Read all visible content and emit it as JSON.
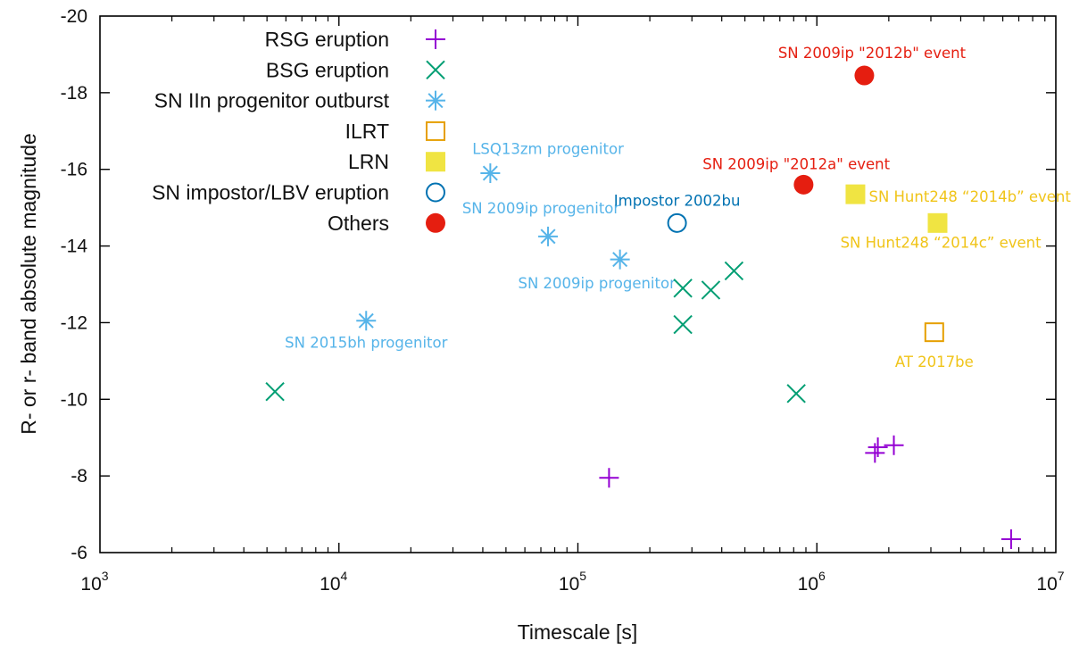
{
  "chart_data": {
    "type": "scatter",
    "title": "",
    "xlabel": "Timescale [s]",
    "ylabel": "R- or r- band absolute magnitude",
    "xscale": "log",
    "xlim": [
      1000,
      10000000
    ],
    "ylim": [
      -6,
      -20
    ],
    "x_ticks": [
      {
        "base": "10",
        "exp": "3"
      },
      {
        "base": "10",
        "exp": "4"
      },
      {
        "base": "10",
        "exp": "5"
      },
      {
        "base": "10",
        "exp": "6"
      },
      {
        "base": "10",
        "exp": "7"
      }
    ],
    "y_ticks": [
      "-6",
      "-8",
      "-10",
      "-12",
      "-14",
      "-16",
      "-18",
      "-20"
    ],
    "grid": false,
    "legend_position": "top-left",
    "series": [
      {
        "name": "RSG eruption",
        "marker": "plus",
        "color": "#9400d3",
        "points": [
          [
            135000,
            -7.95
          ],
          [
            1750000,
            -8.6
          ],
          [
            1800000,
            -8.75
          ],
          [
            2100000,
            -8.8
          ],
          [
            6500000,
            -6.35
          ]
        ]
      },
      {
        "name": "BSG eruption",
        "marker": "cross",
        "color": "#009e73",
        "points": [
          [
            5400,
            -10.2
          ],
          [
            275000,
            -12.9
          ],
          [
            275000,
            -11.95
          ],
          [
            360000,
            -12.85
          ],
          [
            450000,
            -13.35
          ],
          [
            820000,
            -10.15
          ]
        ]
      },
      {
        "name": "SN IIn progenitor outburst",
        "marker": "asterisk",
        "color": "#56b4e9",
        "points": [
          [
            13000,
            -12.05
          ],
          [
            43000,
            -15.9
          ],
          [
            75000,
            -14.25
          ],
          [
            150000,
            -13.65
          ]
        ]
      },
      {
        "name": "ILRT",
        "marker": "open-square",
        "color": "#e69f00",
        "points": [
          [
            3100000,
            -11.75
          ]
        ]
      },
      {
        "name": "LRN",
        "marker": "filled-square",
        "color": "#f0e442",
        "points": [
          [
            1450000,
            -15.35
          ],
          [
            3200000,
            -14.6
          ]
        ]
      },
      {
        "name": "SN impostor/LBV eruption",
        "marker": "open-circle",
        "color": "#0072b2",
        "points": [
          [
            260000,
            -14.6
          ]
        ]
      },
      {
        "name": "Others",
        "marker": "filled-circle",
        "color": "#e51e10",
        "points": [
          [
            880000,
            -15.6
          ],
          [
            1580000,
            -18.45
          ]
        ]
      }
    ],
    "annotations": [
      {
        "text": "SN 2009ip \"2012b\" event",
        "x": 1700000,
        "y": -18.9,
        "anchor": "middle",
        "color": "#e51e10"
      },
      {
        "text": "SN 2009ip \"2012a\" event",
        "x": 820000,
        "y": -16.0,
        "anchor": "middle",
        "color": "#e51e10"
      },
      {
        "text": "LSQ13zm progenitor",
        "x": 75000,
        "y": -16.4,
        "anchor": "middle",
        "color": "#56b4e9"
      },
      {
        "text": "SN 2009ip progenitor",
        "x": 70000,
        "y": -14.85,
        "anchor": "middle",
        "color": "#56b4e9"
      },
      {
        "text": "SN 2009ip progenitor",
        "x": 120000,
        "y": -12.9,
        "anchor": "middle",
        "color": "#56b4e9"
      },
      {
        "text": "SN 2015bh progenitor",
        "x": 13000,
        "y": -11.35,
        "anchor": "middle",
        "color": "#56b4e9"
      },
      {
        "text": "Impostor 2002bu",
        "x": 260000,
        "y": -15.05,
        "anchor": "middle",
        "color": "#0072b2"
      },
      {
        "text": "SN Hunt248 “2014b” event",
        "x": 1650000,
        "y": -15.15,
        "anchor": "start",
        "color": "#f0c419"
      },
      {
        "text": "SN Hunt248 “2014c” event",
        "x": 3300000,
        "y": -13.95,
        "anchor": "middle",
        "color": "#f0c419"
      },
      {
        "text": "AT 2017be",
        "x": 3100000,
        "y": -10.85,
        "anchor": "middle",
        "color": "#f0c419"
      }
    ]
  }
}
